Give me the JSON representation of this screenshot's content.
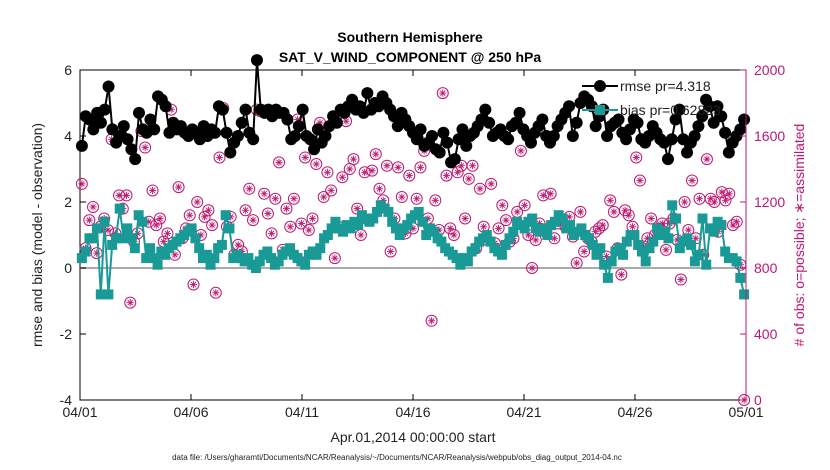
{
  "chart_data": {
    "type": "line",
    "title": "Southern Hemisphere",
    "subtitle": "SAT_V_WIND_COMPONENT @ 250 hPa",
    "xlabel": "Apr.01,2014 00:00:00 start",
    "ylabel_left": "rmse and bias (model - observation)",
    "ylabel_right": "# of obs: o=possible; ∗=assimilated",
    "footnote": "data file: /Users/gharamti/Documents/NCAR/Reanalysis/~/Documents/NCAR/Reanalysis/webpub/obs_diag_output_2014-04.nc",
    "x_ticks": [
      "04/01",
      "04/06",
      "04/11",
      "04/16",
      "04/21",
      "04/26",
      "05/01"
    ],
    "x_range": [
      0,
      30
    ],
    "y_left_ticks": [
      "-4",
      "-2",
      "0",
      "2",
      "4",
      "6"
    ],
    "y_left_range": [
      -4,
      6
    ],
    "y_right_ticks": [
      "0",
      "400",
      "800",
      "1200",
      "1600",
      "2000"
    ],
    "y_right_range": [
      0,
      2000
    ],
    "grid": false,
    "legend_position": "top-right",
    "colors": {
      "rmse": "#000000",
      "bias": "#1a9a96",
      "obs": "#c0186e",
      "zero_line": "#aaaaaa"
    },
    "series": [
      {
        "name": "rmse pr=4.318",
        "key": "rmse",
        "values": [
          3.7,
          4.6,
          4.5,
          4.2,
          4.7,
          4.4,
          4.8,
          5.5,
          4.2,
          3.8,
          4.0,
          4.3,
          3.9,
          3.6,
          3.3,
          4.7,
          4.2,
          4.1,
          4.5,
          4.2,
          5.2,
          5.1,
          4.9,
          4.1,
          4.4,
          4.2,
          4.3,
          4.1,
          4.0,
          4.2,
          4.1,
          3.9,
          4.3,
          4.0,
          4.2,
          4.1,
          4.9,
          4.8,
          4.1,
          3.5,
          3.8,
          4.0,
          4.4,
          4.8,
          4.1,
          3.9,
          6.3,
          4.8,
          4.7,
          4.8,
          4.6,
          4.8,
          4.7,
          4.7,
          4.5,
          3.9,
          4.0,
          4.3,
          4.8,
          4.0,
          3.9,
          3.6,
          4.2,
          3.8,
          4.0,
          4.3,
          4.6,
          4.4,
          4.8,
          4.7,
          4.9,
          5.1,
          4.8,
          4.9,
          4.7,
          5.3,
          4.8,
          5.0,
          4.9,
          5.2,
          5.0,
          4.8,
          4.6,
          4.3,
          4.7,
          4.5,
          4.3,
          4.1,
          3.9,
          4.2,
          3.7,
          3.8,
          4.0,
          3.6,
          3.5,
          4.1,
          3.8,
          3.2,
          3.3,
          3.9,
          4.2,
          3.7,
          4.0,
          4.1,
          4.3,
          4.5,
          4.8,
          4.4,
          4.0,
          4.1,
          4.2,
          4.0,
          3.9,
          4.3,
          4.4,
          4.7,
          4.2,
          4.0,
          3.8,
          4.1,
          4.3,
          4.5,
          4.0,
          3.8,
          4.0,
          4.3,
          4.5,
          4.7,
          4.9,
          4.0,
          4.4,
          5.0,
          5.2,
          5.1,
          4.9,
          4.3,
          4.6,
          4.8,
          4.0,
          4.3,
          4.4,
          4.5,
          4.1,
          3.9,
          4.2,
          4.5,
          4.4,
          3.9,
          3.8,
          4.0,
          4.3,
          4.1,
          3.9,
          3.8,
          3.3,
          3.9,
          4.5,
          4.8,
          3.9,
          3.5,
          3.8,
          4.0,
          4.3,
          4.6,
          5.1,
          4.9,
          4.4,
          4.9,
          4.6,
          4.1,
          3.5,
          3.8,
          4.0,
          4.2,
          4.5
        ]
      },
      {
        "name": "bias pr=0.62823",
        "key": "bias",
        "values": [
          0.3,
          0.5,
          0.9,
          0.9,
          1.2,
          -0.8,
          1.4,
          -0.8,
          0.7,
          0.9,
          1.8,
          0.9,
          1.2,
          0.9,
          0.6,
          1.6,
          1.4,
          0.3,
          0.6,
          0.3,
          0.1,
          0.5,
          0.4,
          0.6,
          0.7,
          0.8,
          0.9,
          1.0,
          1.1,
          1.2,
          0.9,
          0.6,
          0.3,
          0.4,
          0.1,
          0.3,
          0.6,
          0.7,
          1.6,
          1.2,
          0.3,
          0.4,
          0.3,
          0.2,
          0.3,
          0.1,
          0.0,
          0.2,
          0.4,
          0.5,
          0.3,
          0.1,
          0.2,
          0.4,
          0.5,
          0.6,
          0.4,
          0.3,
          0.2,
          0.1,
          0.4,
          0.5,
          0.4,
          0.6,
          0.9,
          1.0,
          1.2,
          1.4,
          1.2,
          1.1,
          1.3,
          1.2,
          1.4,
          1.3,
          1.6,
          1.5,
          1.4,
          1.5,
          1.7,
          1.9,
          1.8,
          1.7,
          1.4,
          1.2,
          1.0,
          1.2,
          1.3,
          1.5,
          1.6,
          1.7,
          1.4,
          1.0,
          1.2,
          1.1,
          0.9,
          0.8,
          0.6,
          0.5,
          0.4,
          0.3,
          0.1,
          0.3,
          0.2,
          0.5,
          0.6,
          0.8,
          0.9,
          1.0,
          0.8,
          0.6,
          0.5,
          0.4,
          0.7,
          0.9,
          1.1,
          1.4,
          1.3,
          1.2,
          1.4,
          1.5,
          1.2,
          1.1,
          1.2,
          1.0,
          1.3,
          1.4,
          1.6,
          1.5,
          1.2,
          1.3,
          1.0,
          1.1,
          1.2,
          1.0,
          0.9,
          0.7,
          0.4,
          0.6,
          0.1,
          -0.3,
          0.2,
          0.5,
          0.6,
          0.4,
          0.8,
          1.0,
          1.0,
          0.7,
          0.5,
          0.2,
          0.6,
          0.8,
          1.2,
          1.0,
          1.1,
          0.9,
          1.9,
          1.5,
          0.6,
          0.8,
          0.9,
          0.7,
          0.2,
          0.4,
          1.5,
          0.1,
          1.2,
          1.1,
          1.4,
          1.3,
          0.5,
          0.3,
          0.3,
          0.2,
          -0.3,
          -0.8
        ]
      }
    ],
    "obs_possible": [
      1310,
      920,
      1090,
      1170,
      890,
      1050,
      1100,
      1030,
      1580,
      1010,
      1240,
      1160,
      1240,
      590,
      960,
      1010,
      1630,
      1530,
      1080,
      1270,
      1060,
      1100,
      960,
      1010,
      1760,
      880,
      1290,
      980,
      1040,
      1120,
      700,
      1200,
      1000,
      1110,
      1150,
      1060,
      650,
      1470,
      1770,
      1050,
      1110,
      880,
      940,
      900,
      1150,
      1280,
      1090,
      1760,
      1750,
      1250,
      1130,
      1010,
      1220,
      1440,
      910,
      1160,
      1050,
      1220,
      1700,
      1070,
      1470,
      1030,
      1100,
      1430,
      1680,
      1230,
      1380,
      1270,
      860,
      1050,
      1350,
      1690,
      1400,
      1460,
      1160,
      1000,
      1380,
      1090,
      1390,
      1490,
      1280,
      1210,
      1420,
      900,
      1100,
      1410,
      1230,
      1010,
      1360,
      1040,
      1220,
      1410,
      1510,
      1100,
      480,
      1210,
      1030,
      1860,
      1360,
      1040,
      1000,
      1380,
      1420,
      1100,
      1340,
      1420,
      920,
      1280,
      1050,
      970,
      1310,
      950,
      1040,
      1180,
      1090,
      960,
      980,
      1140,
      1510,
      1180,
      1000,
      800,
      970,
      1070,
      1240,
      1600,
      1250,
      980,
      1070,
      1090,
      1050,
      1110,
      990,
      830,
      1140,
      900,
      980,
      960,
      1020,
      1040,
      1060,
      870,
      1210,
      1140,
      920,
      760,
      1150,
      1120,
      1050,
      1470,
      1330,
      930,
      980,
      1100,
      1000,
      1040,
      1070,
      910,
      1070,
      1100,
      970,
      730,
      1200,
      1030,
      1330,
      980,
      1220,
      880,
      1460,
      1220,
      1200,
      1020,
      1260,
      1210,
      1250,
      1060,
      1080,
      820,
      0
    ]
  }
}
